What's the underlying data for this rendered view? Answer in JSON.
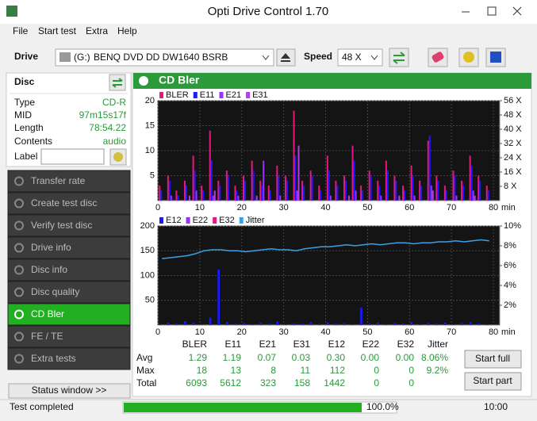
{
  "window": {
    "title": "Opti Drive Control 1.70"
  },
  "menu": [
    "File",
    "Start test",
    "Extra",
    "Help"
  ],
  "toolbar": {
    "drive_label": "Drive",
    "drive_letter": "(G:)",
    "drive_name": "BENQ DVD DD DW1640 BSRB",
    "speed_label": "Speed",
    "speed": "48 X"
  },
  "disc": {
    "heading": "Disc",
    "rows": [
      [
        "Type",
        "CD-R"
      ],
      [
        "MID",
        "97m15s17f"
      ],
      [
        "Length",
        "78:54.22"
      ],
      [
        "Contents",
        "audio"
      ]
    ],
    "label_field": "Label"
  },
  "nav": {
    "items": [
      "Transfer rate",
      "Create test disc",
      "Verify test disc",
      "Drive info",
      "Disc info",
      "Disc quality",
      "CD Bler",
      "FE / TE",
      "Extra tests"
    ],
    "active": 6,
    "status_button": "Status window >>"
  },
  "panel": {
    "title": "CD Bler"
  },
  "stats": {
    "headers": [
      "BLER",
      "E11",
      "E21",
      "E31",
      "E12",
      "E22",
      "E32",
      "Jitter"
    ],
    "rows": [
      {
        "label": "Avg",
        "values": [
          "1.29",
          "1.19",
          "0.07",
          "0.03",
          "0.30",
          "0.00",
          "0.00",
          "8.06%"
        ]
      },
      {
        "label": "Max",
        "values": [
          "18",
          "13",
          "8",
          "11",
          "112",
          "0",
          "0",
          "9.2%"
        ]
      },
      {
        "label": "Total",
        "values": [
          "6093",
          "5612",
          "323",
          "158",
          "1442",
          "0",
          "0"
        ]
      }
    ]
  },
  "buttons": [
    "Start full",
    "Start part"
  ],
  "status": {
    "text": "Test completed",
    "progress": "100.0%",
    "time": "10:00"
  },
  "chart_data": [
    {
      "type": "bar",
      "x_unit": "min",
      "x": [
        1,
        3,
        5,
        7,
        9,
        11,
        13,
        15,
        17,
        19,
        21,
        23,
        25,
        27,
        29,
        31,
        33,
        35,
        37,
        39,
        41,
        43,
        45,
        47,
        49,
        51,
        53,
        55,
        57,
        59,
        61,
        63,
        65,
        67,
        69,
        71,
        73,
        75,
        77,
        79
      ],
      "xlim": [
        0,
        81.5
      ],
      "xticks": [
        0,
        10,
        20,
        30,
        40,
        50,
        60,
        70,
        80
      ],
      "ylim": [
        0,
        20
      ],
      "yticks": [
        5,
        10,
        15,
        20
      ],
      "y2lim": [
        0,
        56
      ],
      "y2ticks": [
        {
          "value": 8,
          "label": "8 X"
        },
        {
          "value": 16,
          "label": "16 X"
        },
        {
          "value": 24,
          "label": "24 X"
        },
        {
          "value": 32,
          "label": "32 X"
        },
        {
          "value": 40,
          "label": "40 X"
        },
        {
          "value": 48,
          "label": "48 X"
        },
        {
          "value": 56,
          "label": "56 X"
        }
      ],
      "series": [
        {
          "name": "BLER",
          "color": "#e8177f",
          "values": [
            3,
            5,
            2,
            4,
            9,
            3,
            14,
            4,
            6,
            3,
            5,
            8,
            4,
            3,
            7,
            5,
            18,
            4,
            6,
            3,
            9,
            4,
            5,
            11,
            3,
            6,
            4,
            8,
            5,
            3,
            7,
            4,
            12,
            5,
            3,
            6,
            4,
            9,
            5,
            3
          ]
        },
        {
          "name": "E11",
          "color": "#1a1aff",
          "values": [
            2,
            4,
            1,
            3,
            6,
            2,
            8,
            3,
            5,
            2,
            4,
            6,
            3,
            2,
            5,
            4,
            9,
            3,
            5,
            2,
            6,
            3,
            4,
            8,
            2,
            5,
            3,
            6,
            4,
            2,
            5,
            3,
            13,
            4,
            2,
            5,
            3,
            7,
            4,
            2
          ]
        },
        {
          "name": "E21",
          "color": "#9b30ff",
          "values": [
            0,
            1,
            0,
            0,
            2,
            0,
            1,
            0,
            0,
            1,
            0,
            0,
            8,
            0,
            1,
            0,
            2,
            0,
            0,
            0,
            1,
            0,
            0,
            2,
            0,
            0,
            1,
            0,
            0,
            0,
            1,
            0,
            3,
            0,
            0,
            1,
            0,
            2,
            0,
            0
          ]
        },
        {
          "name": "E31",
          "color": "#b040e0",
          "values": [
            0,
            0,
            0,
            1,
            0,
            0,
            2,
            0,
            0,
            0,
            0,
            1,
            0,
            0,
            0,
            0,
            11,
            0,
            0,
            0,
            0,
            0,
            1,
            0,
            0,
            0,
            0,
            0,
            1,
            0,
            0,
            0,
            2,
            0,
            0,
            0,
            0,
            1,
            0,
            0
          ]
        }
      ]
    },
    {
      "type": "bar",
      "x_unit": "min",
      "x": [
        1,
        3,
        5,
        7,
        9,
        11,
        13,
        15,
        17,
        19,
        21,
        23,
        25,
        27,
        29,
        31,
        33,
        35,
        37,
        39,
        41,
        43,
        45,
        47,
        49,
        51,
        53,
        55,
        57,
        59,
        61,
        63,
        65,
        67,
        69,
        71,
        73,
        75,
        77,
        79
      ],
      "xlim": [
        0,
        81.5
      ],
      "xticks": [
        0,
        10,
        20,
        30,
        40,
        50,
        60,
        70,
        80
      ],
      "ylim": [
        0,
        200
      ],
      "yticks": [
        50,
        100,
        150,
        200
      ],
      "y2lim": [
        0,
        10
      ],
      "y2ticks": [
        {
          "value": 2,
          "label": "2%"
        },
        {
          "value": 4,
          "label": "4%"
        },
        {
          "value": 6,
          "label": "6%"
        },
        {
          "value": 8,
          "label": "8%"
        },
        {
          "value": 10,
          "label": "10%"
        }
      ],
      "series": [
        {
          "name": "E12",
          "color": "#1a1aff",
          "values": [
            2,
            5,
            3,
            8,
            4,
            2,
            15,
            112,
            6,
            3,
            4,
            2,
            5,
            3,
            7,
            2,
            4,
            3,
            6,
            2,
            5,
            3,
            4,
            2,
            35,
            3,
            5,
            2,
            4,
            3,
            6,
            2,
            4,
            3,
            5,
            2,
            4,
            6,
            3,
            2
          ]
        },
        {
          "name": "E22",
          "color": "#9b30ff",
          "values": [
            0,
            0,
            0,
            0,
            0,
            0,
            0,
            0,
            0,
            0,
            0,
            0,
            0,
            0,
            0,
            0,
            0,
            0,
            0,
            0,
            0,
            0,
            0,
            0,
            0,
            0,
            0,
            0,
            0,
            0,
            0,
            0,
            0,
            0,
            0,
            0,
            0,
            0,
            0,
            0
          ]
        },
        {
          "name": "E32",
          "color": "#e8177f",
          "values": [
            0,
            0,
            0,
            0,
            0,
            0,
            0,
            0,
            0,
            0,
            0,
            0,
            0,
            0,
            0,
            0,
            0,
            0,
            0,
            0,
            0,
            0,
            0,
            0,
            0,
            0,
            0,
            0,
            0,
            0,
            0,
            0,
            0,
            0,
            0,
            0,
            0,
            0,
            0,
            0
          ]
        },
        {
          "name": "Jitter",
          "color": "#3aa0e8",
          "type": "line",
          "axis": "y2",
          "values": [
            6.7,
            6.8,
            6.9,
            7.0,
            7.2,
            7.5,
            7.6,
            7.6,
            7.5,
            7.5,
            7.4,
            7.5,
            7.6,
            7.7,
            7.6,
            7.6,
            7.5,
            7.7,
            7.8,
            7.9,
            7.9,
            8.0,
            8.1,
            8.0,
            8.1,
            8.2,
            8.1,
            8.2,
            8.3,
            8.3,
            8.2,
            8.3,
            8.3,
            8.4,
            8.4,
            8.5,
            8.4,
            8.5,
            8.6,
            8.5
          ]
        }
      ]
    }
  ]
}
